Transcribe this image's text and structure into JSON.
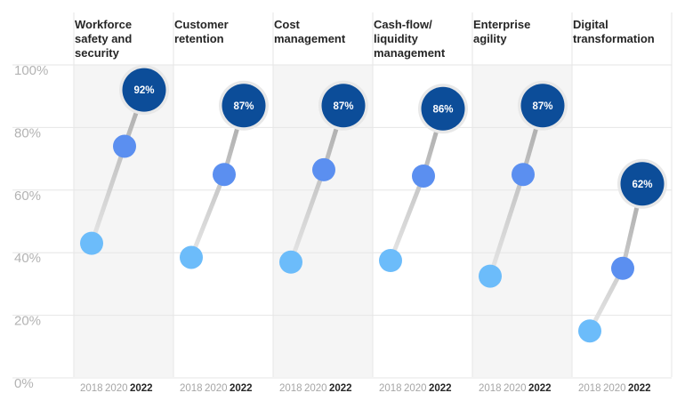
{
  "chart_data": {
    "type": "line",
    "ylim": [
      0,
      100
    ],
    "yticks": [
      "0%",
      "20%",
      "40%",
      "60%",
      "80%",
      "100%"
    ],
    "x": [
      "2018",
      "2020",
      "2022"
    ],
    "grid": true,
    "colors": {
      "2018": "#6cbcfa",
      "2020": "#5b8ff0",
      "2022": "#0c4d99",
      "panel_shade": "#f5f5f5",
      "grid": "#e6e6e6"
    },
    "panels": [
      {
        "title_lines": [
          "Workforce",
          "safety and",
          "security"
        ],
        "values": [
          43,
          74,
          92
        ],
        "label": "92%"
      },
      {
        "title_lines": [
          "Customer",
          "retention"
        ],
        "values": [
          38.5,
          65,
          87
        ],
        "label": "87%"
      },
      {
        "title_lines": [
          "Cost",
          "management"
        ],
        "values": [
          37,
          66.5,
          87
        ],
        "label": "87%"
      },
      {
        "title_lines": [
          "Cash-flow/",
          "liquidity",
          "management"
        ],
        "values": [
          37.5,
          64.5,
          86
        ],
        "label": "86%"
      },
      {
        "title_lines": [
          "Enterprise",
          "agility"
        ],
        "values": [
          32.5,
          65,
          87
        ],
        "label": "87%"
      },
      {
        "title_lines": [
          "Digital",
          "transformation"
        ],
        "values": [
          15,
          35,
          62
        ],
        "label": "62%"
      }
    ]
  }
}
